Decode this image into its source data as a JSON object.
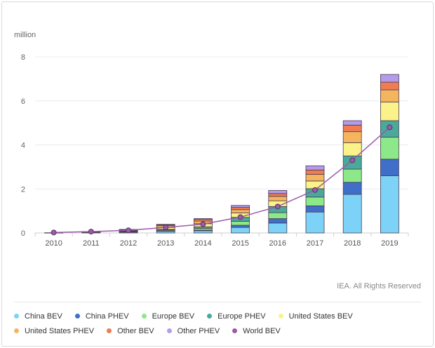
{
  "chart_data": {
    "type": "bar",
    "stacked": true,
    "unit_label": "million",
    "categories": [
      "2010",
      "2011",
      "2012",
      "2013",
      "2014",
      "2015",
      "2016",
      "2017",
      "2018",
      "2019"
    ],
    "ylim": [
      0,
      8
    ],
    "yticks": [
      0,
      2,
      4,
      6,
      8
    ],
    "grid": true,
    "legend_position": "bottom",
    "credit": "IEA. All Rights Reserved",
    "series": [
      {
        "name": "China BEV",
        "color": "#7dd3f7",
        "values": [
          0.01,
          0.02,
          0.04,
          0.08,
          0.1,
          0.25,
          0.45,
          0.95,
          1.75,
          2.6
        ]
      },
      {
        "name": "China PHEV",
        "color": "#3f6fc9",
        "values": [
          0.0,
          0.0,
          0.01,
          0.01,
          0.03,
          0.1,
          0.2,
          0.28,
          0.55,
          0.75
        ]
      },
      {
        "name": "Europe BEV",
        "color": "#8de889",
        "values": [
          0.0,
          0.01,
          0.02,
          0.04,
          0.08,
          0.18,
          0.27,
          0.4,
          0.6,
          1.0
        ]
      },
      {
        "name": "Europe PHEV",
        "color": "#49a99b",
        "values": [
          0.0,
          0.0,
          0.01,
          0.03,
          0.07,
          0.18,
          0.28,
          0.38,
          0.6,
          0.75
        ]
      },
      {
        "name": "United States BEV",
        "color": "#fbf38a",
        "values": [
          0.0,
          0.01,
          0.02,
          0.09,
          0.14,
          0.2,
          0.26,
          0.35,
          0.6,
          0.85
        ]
      },
      {
        "name": "United States PHEV",
        "color": "#f5b55f",
        "values": [
          0.0,
          0.01,
          0.03,
          0.08,
          0.12,
          0.15,
          0.2,
          0.3,
          0.5,
          0.55
        ]
      },
      {
        "name": "Other BEV",
        "color": "#f07c52",
        "values": [
          0.0,
          0.01,
          0.02,
          0.04,
          0.08,
          0.1,
          0.13,
          0.2,
          0.3,
          0.35
        ]
      },
      {
        "name": "Other PHEV",
        "color": "#b49cec",
        "values": [
          0.0,
          0.0,
          0.01,
          0.02,
          0.03,
          0.09,
          0.14,
          0.19,
          0.2,
          0.35
        ]
      }
    ],
    "line": {
      "name": "World BEV",
      "color": "#9c5aa8",
      "values": [
        0.02,
        0.06,
        0.12,
        0.25,
        0.4,
        0.72,
        1.2,
        1.95,
        3.3,
        4.8
      ]
    }
  },
  "legend": [
    [
      {
        "label": "China BEV",
        "color": "#7dd3f7"
      },
      {
        "label": "China PHEV",
        "color": "#3f6fc9"
      },
      {
        "label": "Europe BEV",
        "color": "#8de889"
      },
      {
        "label": "Europe PHEV",
        "color": "#49a99b"
      },
      {
        "label": "United States BEV",
        "color": "#fbf38a"
      }
    ],
    [
      {
        "label": "United States PHEV",
        "color": "#f5b55f"
      },
      {
        "label": "Other BEV",
        "color": "#f07c52"
      },
      {
        "label": "Other PHEV",
        "color": "#b49cec"
      },
      {
        "label": "World BEV",
        "color": "#9c5aa8"
      }
    ]
  ]
}
